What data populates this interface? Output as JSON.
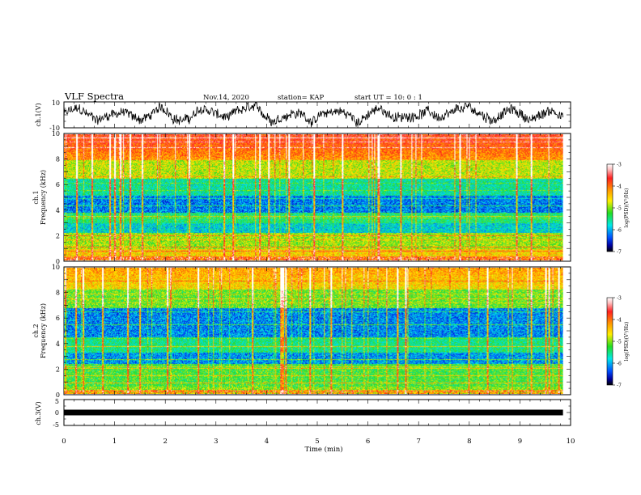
{
  "header": {
    "title": "VLF Spectra",
    "date": "Nov.14, 2020",
    "station": "station= KAP",
    "start": "start  UT =   10: 0  : 1"
  },
  "chart_data": [
    {
      "type": "line",
      "id": "ch1-waveform",
      "ylabel": "ch.1(V)",
      "ylim": [
        -10,
        10
      ],
      "yticks": [
        {
          "value": 10,
          "label": "10"
        },
        {
          "value": -10,
          "label": "-10"
        }
      ],
      "xlim": [
        0,
        10
      ],
      "x_end": 9.85
    },
    {
      "type": "heatmap",
      "id": "ch1-spectrogram",
      "ylabel": "ch.1\nFrequency (kHz)",
      "ylim": [
        0,
        10
      ],
      "yticks": [
        "0",
        "2",
        "4",
        "6",
        "8",
        "10"
      ],
      "xlim": [
        0,
        10
      ],
      "x_end": 9.85,
      "colorbar": {
        "label": "log(PSD)(V²/Hz)",
        "range": [
          -7,
          -3
        ],
        "ticks": [
          "-3",
          "-4",
          "-5",
          "-6",
          "-7"
        ]
      }
    },
    {
      "type": "heatmap",
      "id": "ch2-spectrogram",
      "ylabel": "ch.2\nFrequency (kHz)",
      "ylim": [
        0,
        10
      ],
      "yticks": [
        "0",
        "2",
        "4",
        "6",
        "8",
        "10"
      ],
      "xlim": [
        0,
        10
      ],
      "x_end": 9.85,
      "colorbar": {
        "label": "log(PSD)(V²/Hz)",
        "range": [
          -7,
          -3
        ],
        "ticks": [
          "-3",
          "-4",
          "-5",
          "-6",
          "-7"
        ]
      }
    },
    {
      "type": "line",
      "id": "ch3-signal",
      "ylabel": "ch.3(V)",
      "ylim": [
        -5,
        5
      ],
      "yticks": [
        {
          "value": 5,
          "label": "5"
        },
        {
          "value": 0,
          "label": "0"
        },
        {
          "value": -5,
          "label": "-5"
        }
      ],
      "level": 0,
      "xlim": [
        0,
        10
      ],
      "x_end": 9.85
    }
  ],
  "xaxis": {
    "label": "Time (min)",
    "ticks": [
      "0",
      "1",
      "2",
      "3",
      "4",
      "5",
      "6",
      "7",
      "8",
      "9",
      "10"
    ]
  }
}
